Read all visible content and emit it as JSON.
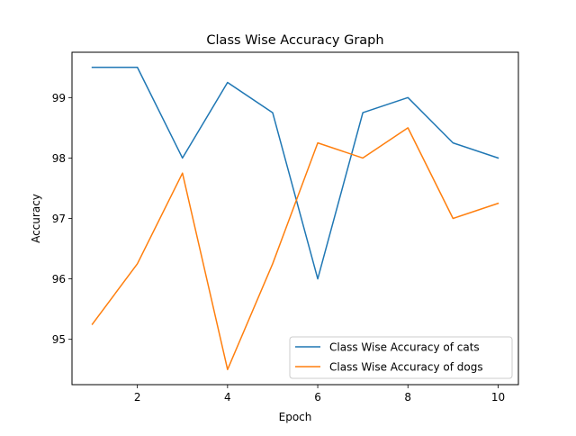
{
  "chart_data": {
    "type": "line",
    "title": "Class Wise Accuracy Graph",
    "xlabel": "Epoch",
    "ylabel": "Accuracy",
    "x": [
      1,
      2,
      3,
      4,
      5,
      6,
      7,
      8,
      9,
      10
    ],
    "xlim": [
      0.55,
      10.45
    ],
    "ylim": [
      94.25,
      99.75
    ],
    "xticks": [
      2,
      4,
      6,
      8,
      10
    ],
    "yticks": [
      95,
      96,
      97,
      98,
      99
    ],
    "grid": false,
    "legend_position": "lower-right",
    "series": [
      {
        "name": "Class Wise Accuracy of cats",
        "color": "#1f77b4",
        "values": [
          99.5,
          99.5,
          98.0,
          99.25,
          98.75,
          96.0,
          98.75,
          99.0,
          98.25,
          98.0
        ]
      },
      {
        "name": "Class Wise Accuracy of dogs",
        "color": "#ff7f0e",
        "values": [
          95.25,
          96.25,
          97.75,
          94.5,
          96.25,
          98.25,
          98.0,
          98.5,
          97.0,
          97.25
        ]
      }
    ]
  }
}
